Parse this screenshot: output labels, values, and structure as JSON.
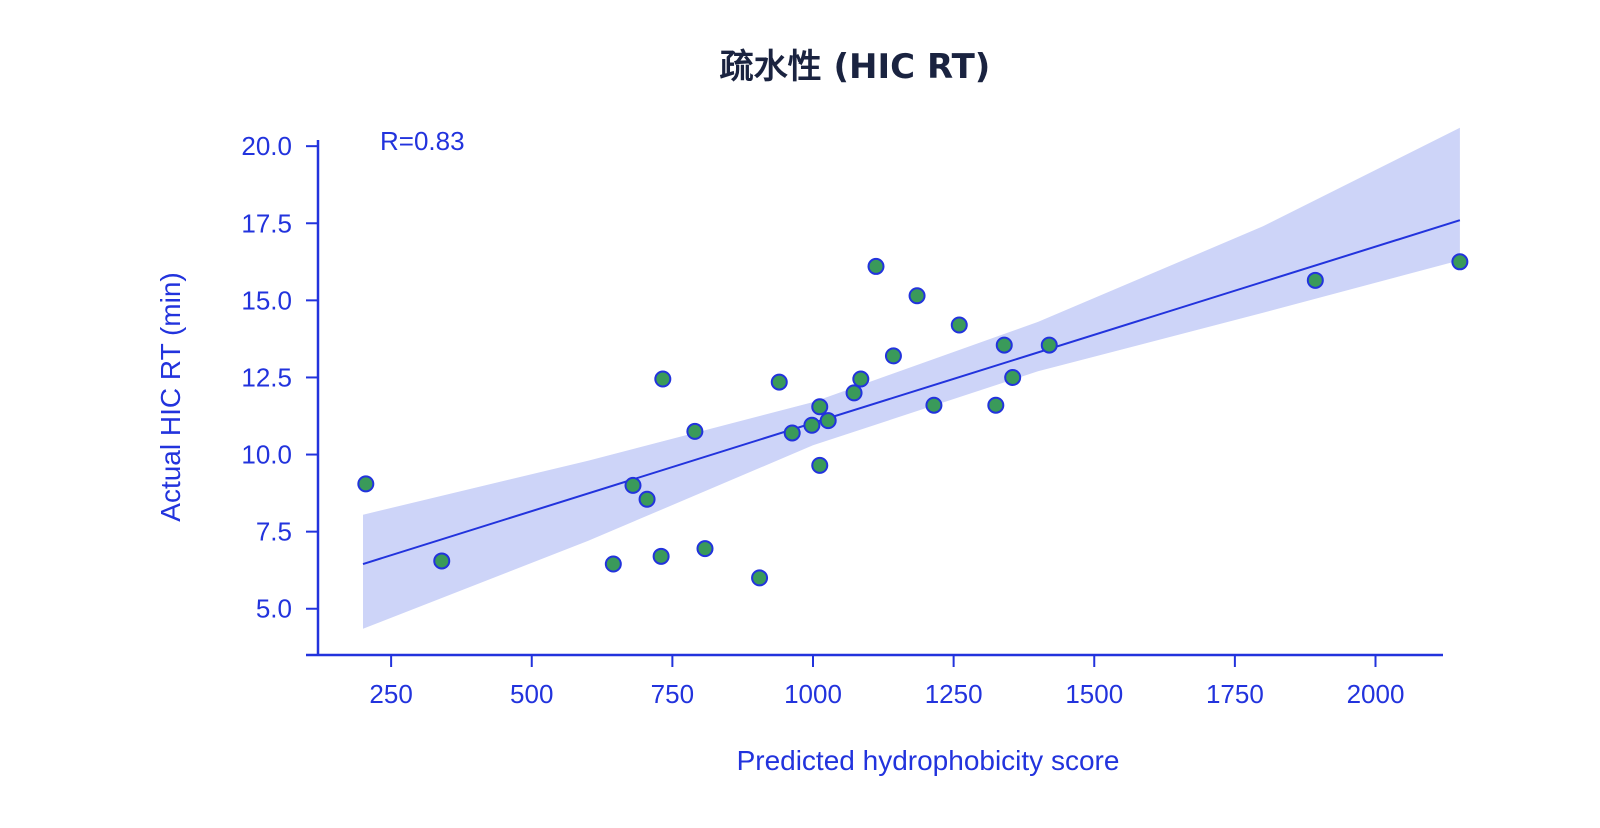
{
  "chart_data": {
    "type": "scatter",
    "title": "疏水性 (HIC RT)",
    "xlabel": "Predicted hydrophobicity score",
    "ylabel": "Actual HIC RT (min)",
    "annotation": "R=0.83",
    "xlim": [
      120,
      2120
    ],
    "ylim": [
      3.5,
      20.2
    ],
    "x_ticks": [
      250,
      500,
      750,
      1000,
      1250,
      1500,
      1750,
      2000
    ],
    "y_ticks": [
      5.0,
      7.5,
      10.0,
      12.5,
      15.0,
      17.5,
      20.0
    ],
    "x_tick_labels": [
      "250",
      "500",
      "750",
      "1000",
      "1250",
      "1500",
      "1750",
      "2000"
    ],
    "y_tick_labels": [
      "5.0",
      "7.5",
      "10.0",
      "12.5",
      "15.0",
      "17.5",
      "20.0"
    ],
    "grid": false,
    "colors": {
      "axis": "#2233dd",
      "line": "#2233dd",
      "band": "#cdd4f8",
      "point_fill": "#3a9a5a",
      "point_stroke": "#2233dd",
      "title": "#1a2340"
    },
    "points": [
      {
        "x": 205,
        "y": 9.05
      },
      {
        "x": 340,
        "y": 6.55
      },
      {
        "x": 645,
        "y": 6.45
      },
      {
        "x": 680,
        "y": 9.0
      },
      {
        "x": 705,
        "y": 8.55
      },
      {
        "x": 730,
        "y": 6.7
      },
      {
        "x": 733,
        "y": 12.45
      },
      {
        "x": 790,
        "y": 10.75
      },
      {
        "x": 808,
        "y": 6.95
      },
      {
        "x": 905,
        "y": 6.0
      },
      {
        "x": 940,
        "y": 12.35
      },
      {
        "x": 963,
        "y": 10.7
      },
      {
        "x": 998,
        "y": 10.95
      },
      {
        "x": 1012,
        "y": 11.55
      },
      {
        "x": 1012,
        "y": 9.65
      },
      {
        "x": 1027,
        "y": 11.1
      },
      {
        "x": 1073,
        "y": 12.0
      },
      {
        "x": 1085,
        "y": 12.45
      },
      {
        "x": 1112,
        "y": 16.1
      },
      {
        "x": 1143,
        "y": 13.2
      },
      {
        "x": 1185,
        "y": 15.15
      },
      {
        "x": 1215,
        "y": 11.6
      },
      {
        "x": 1260,
        "y": 14.2
      },
      {
        "x": 1325,
        "y": 11.6
      },
      {
        "x": 1340,
        "y": 13.55
      },
      {
        "x": 1355,
        "y": 12.5
      },
      {
        "x": 1420,
        "y": 13.55
      },
      {
        "x": 1893,
        "y": 15.65
      },
      {
        "x": 2150,
        "y": 16.25
      }
    ],
    "fit_line": {
      "x": [
        200,
        2150
      ],
      "y": [
        6.45,
        17.6
      ]
    },
    "confidence_band": {
      "upper": [
        {
          "x": 200,
          "y": 8.05
        },
        {
          "x": 600,
          "y": 9.8
        },
        {
          "x": 1000,
          "y": 11.7
        },
        {
          "x": 1400,
          "y": 14.3
        },
        {
          "x": 1800,
          "y": 17.4
        },
        {
          "x": 2150,
          "y": 20.6
        }
      ],
      "lower": [
        {
          "x": 200,
          "y": 4.35
        },
        {
          "x": 600,
          "y": 7.2
        },
        {
          "x": 1000,
          "y": 10.3
        },
        {
          "x": 1400,
          "y": 12.7
        },
        {
          "x": 1800,
          "y": 14.6
        },
        {
          "x": 2150,
          "y": 16.3
        }
      ]
    }
  }
}
